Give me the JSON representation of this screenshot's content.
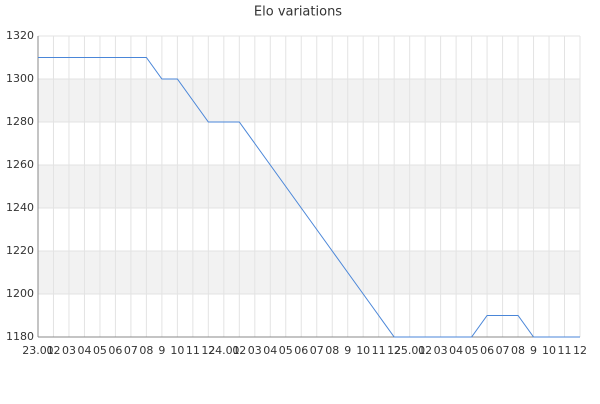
{
  "chart_data": {
    "type": "line",
    "title": "Elo variations",
    "categories": [
      "23.01",
      "02",
      "03",
      "04",
      "05",
      "06",
      "07",
      "08",
      "9",
      "10",
      "11",
      "12",
      "24.01",
      "02",
      "03",
      "04",
      "05",
      "06",
      "07",
      "08",
      "9",
      "10",
      "11",
      "12",
      "25.01",
      "02",
      "03",
      "04",
      "05",
      "06",
      "07",
      "08",
      "9",
      "10",
      "11",
      "12"
    ],
    "series": [
      {
        "name": "Elo",
        "color": "#4a86d8",
        "values": [
          1310,
          1310,
          1310,
          1310,
          1310,
          1310,
          1310,
          1310,
          1300,
          1300,
          1290,
          1280,
          1280,
          1280,
          1270,
          1260,
          1250,
          1240,
          1230,
          1220,
          1210,
          1200,
          1190,
          1180,
          1180,
          1180,
          1180,
          1180,
          1180,
          1190,
          1190,
          1190,
          1180,
          1180,
          1180,
          1180
        ]
      }
    ],
    "ylim": [
      1180,
      1320
    ],
    "yticks": [
      1180,
      1200,
      1220,
      1240,
      1260,
      1280,
      1300,
      1320
    ],
    "grid": true
  }
}
